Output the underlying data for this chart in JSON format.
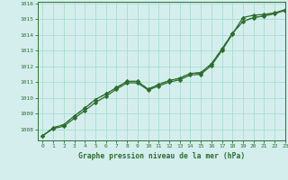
{
  "title": "Graphe pression niveau de la mer (hPa)",
  "background_color": "#d4eeee",
  "grid_color": "#aaddcc",
  "line_color": "#2d6e2d",
  "xlim": [
    -0.5,
    23
  ],
  "ylim": [
    1007.3,
    1016.1
  ],
  "yticks": [
    1008,
    1009,
    1010,
    1011,
    1012,
    1013,
    1014,
    1015,
    1016
  ],
  "xticks": [
    0,
    1,
    2,
    3,
    4,
    5,
    6,
    7,
    8,
    9,
    10,
    11,
    12,
    13,
    14,
    15,
    16,
    17,
    18,
    19,
    20,
    21,
    22,
    23
  ],
  "series": [
    {
      "y": [
        1007.6,
        1008.1,
        1008.3,
        1008.85,
        1009.35,
        1009.9,
        1010.25,
        1010.65,
        1011.05,
        1011.05,
        1010.55,
        1010.85,
        1011.1,
        1011.25,
        1011.55,
        1011.6,
        1012.15,
        1013.1,
        1014.1,
        1014.85,
        1015.1,
        1015.2,
        1015.35,
        1015.55
      ],
      "linestyle": "-",
      "linewidth": 0.9,
      "marker": "D",
      "markersize": 2.2,
      "zorder": 3
    },
    {
      "y": [
        1007.6,
        1008.1,
        1008.3,
        1008.85,
        1009.35,
        1009.9,
        1010.25,
        1010.65,
        1011.05,
        1011.05,
        1010.55,
        1010.85,
        1011.1,
        1011.25,
        1011.55,
        1011.6,
        1012.15,
        1013.1,
        1014.1,
        1014.85,
        1015.1,
        1015.2,
        1015.35,
        1015.55
      ],
      "linestyle": "--",
      "linewidth": 0.8,
      "marker": "D",
      "markersize": 1.8,
      "zorder": 2
    },
    {
      "y": [
        1007.6,
        1008.05,
        1008.2,
        1008.7,
        1009.2,
        1009.7,
        1010.1,
        1010.55,
        1010.95,
        1010.95,
        1010.5,
        1010.75,
        1011.0,
        1011.15,
        1011.45,
        1011.5,
        1012.05,
        1013.0,
        1014.05,
        1015.1,
        1015.25,
        1015.3,
        1015.4,
        1015.6
      ],
      "linestyle": "-",
      "linewidth": 0.9,
      "marker": "D",
      "markersize": 2.2,
      "zorder": 3
    }
  ]
}
